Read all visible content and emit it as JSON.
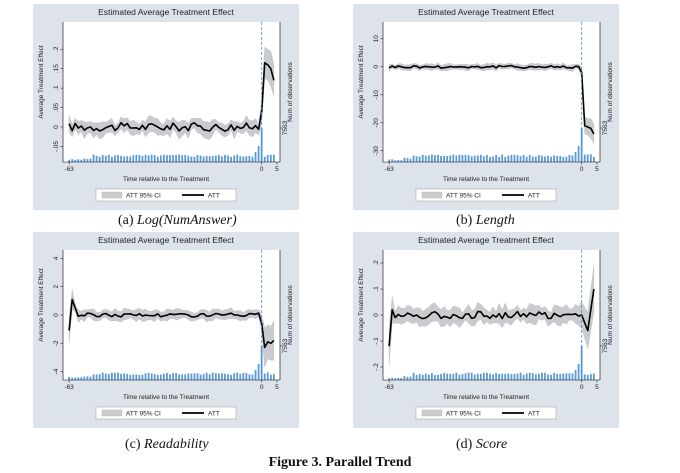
{
  "figure_caption": "Figure 3. Parallel Trend",
  "panels": [
    {
      "id": "a",
      "caption_prefix": "(a) ",
      "caption_name": "Log(NumAnswer)",
      "panel_title": "Estimated Average Treatment Effect",
      "ylabel": "Average Treatment Effect",
      "y2label": "Num of observations",
      "y2tick": "7563",
      "xlabel": "Time relative to the Treatment",
      "legend_ci": "ATT 95% CI",
      "legend_att": "ATT",
      "yticks": [
        {
          "v": -0.05,
          "t": "-.05"
        },
        {
          "v": 0,
          "t": "0"
        },
        {
          "v": 0.05,
          "t": ".05"
        },
        {
          "v": 0.1,
          "t": ".1"
        },
        {
          "v": 0.15,
          "t": ".15"
        },
        {
          "v": 0.2,
          "t": ".2"
        }
      ],
      "xticks": [
        {
          "v": -63,
          "t": "-63"
        },
        {
          "v": 0,
          "t": "0"
        },
        {
          "v": 5,
          "t": "5"
        }
      ],
      "ylim": [
        -0.09,
        0.27
      ],
      "pre_amp": 0.011,
      "pre_base": 0.0,
      "post": [
        0.04,
        0.165,
        0.16,
        0.15,
        0.12
      ],
      "post_ci": [
        0.03,
        0.04,
        0.04,
        0.045,
        0.04
      ],
      "ci_pre": 0.017
    },
    {
      "id": "b",
      "caption_prefix": "(b) ",
      "caption_name": "Length",
      "panel_title": "Estimated Average Treatment Effect",
      "ylabel": "Average Treatment Effect",
      "y2label": "Num of observations",
      "y2tick": "7563",
      "xlabel": "Time relative to the Treatment",
      "legend_ci": "ATT 95% CI",
      "legend_att": "ATT",
      "yticks": [
        {
          "v": -30,
          "t": "-30"
        },
        {
          "v": -20,
          "t": "-20"
        },
        {
          "v": -10,
          "t": "-10"
        },
        {
          "v": 0,
          "t": "0"
        },
        {
          "v": 10,
          "t": "10"
        }
      ],
      "xticks": [
        {
          "v": -63,
          "t": "-63"
        },
        {
          "v": 0,
          "t": "0"
        },
        {
          "v": 5,
          "t": "5"
        }
      ],
      "ylim": [
        -34,
        16
      ],
      "pre_amp": 0.5,
      "pre_base": 0.0,
      "post": [
        -2,
        -21,
        -21.5,
        -22,
        -24
      ],
      "post_ci": [
        2,
        3,
        3,
        3.5,
        3.5
      ],
      "ci_pre": 1.0
    },
    {
      "id": "c",
      "caption_prefix": "(c) ",
      "caption_name": "Readability",
      "panel_title": "Estimated Average Treatment Effect",
      "ylabel": "Average Treatment Effect",
      "y2label": "Num of observations",
      "y2tick": "7563",
      "xlabel": "Time relative to the Treatment",
      "legend_ci": "ATT 95% CI",
      "legend_att": "ATT",
      "yticks": [
        {
          "v": -4,
          "t": "-4"
        },
        {
          "v": -2,
          "t": "-2"
        },
        {
          "v": 0,
          "t": "0"
        },
        {
          "v": 2,
          "t": "2"
        },
        {
          "v": 4,
          "t": "4"
        }
      ],
      "xticks": [
        {
          "v": -63,
          "t": "-63"
        },
        {
          "v": 0,
          "t": "0"
        },
        {
          "v": 5,
          "t": "5"
        }
      ],
      "ylim": [
        -4.6,
        4.6
      ],
      "pre_amp": 0.14,
      "pre_base": 0.0,
      "post": [
        -0.6,
        -2.3,
        -1.9,
        -2.0,
        -1.8
      ],
      "post_ci": [
        0.6,
        1.4,
        1.2,
        1.2,
        1.4
      ],
      "ci_pre": 0.35,
      "start": [
        -1.1,
        1.1,
        0.5
      ]
    },
    {
      "id": "d",
      "caption_prefix": "(d) ",
      "caption_name": "Score",
      "panel_title": "Estimated Average Treatment Effect",
      "ylabel": "Average Treatment Effect",
      "y2label": "Num of observations",
      "y2tick": "7563",
      "xlabel": "Time relative to the Treatment",
      "legend_ci": "ATT 95% CI",
      "legend_att": "ATT",
      "yticks": [
        {
          "v": -0.2,
          "t": "-.2"
        },
        {
          "v": -0.1,
          "t": "-.1"
        },
        {
          "v": 0,
          "t": "0"
        },
        {
          "v": 0.1,
          "t": ".1"
        },
        {
          "v": 0.2,
          "t": ".2"
        }
      ],
      "xticks": [
        {
          "v": -63,
          "t": "-63"
        },
        {
          "v": 0,
          "t": "0"
        },
        {
          "v": 5,
          "t": "5"
        }
      ],
      "ylim": [
        -0.25,
        0.25
      ],
      "pre_amp": 0.014,
      "pre_base": 0.0,
      "post": [
        0.0,
        -0.03,
        -0.06,
        0.02,
        0.1
      ],
      "post_ci": [
        0.05,
        0.06,
        0.07,
        0.08,
        0.09
      ],
      "ci_pre": 0.03,
      "start": [
        -0.12,
        0.02,
        -0.01
      ]
    }
  ],
  "colors": {
    "panel_bg": "#dde3ea",
    "plot_bg": "#ffffff",
    "ci": "#c9cbce",
    "line": "#000000",
    "bar": "#5b9bd5",
    "vline": "#4a8fdc"
  }
}
